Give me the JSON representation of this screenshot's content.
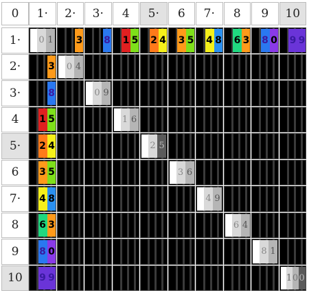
{
  "corner_label": "0",
  "col_headers": [
    "1·",
    "2·",
    "3·",
    "4",
    "5·",
    "6",
    "7·",
    "8",
    "9",
    "10"
  ],
  "row_headers": [
    "1·",
    "2·",
    "3·",
    "4",
    "5·",
    "6",
    "7·",
    "8",
    "9",
    "10"
  ],
  "shaded_col_headers": [
    "5·",
    "10"
  ],
  "shaded_row_headers": [
    "5·",
    "10"
  ],
  "colors": {
    "diag_white": "#ffffff",
    "diag_light": "#d9d9d9",
    "diag_mid": "#b5b5b5",
    "diag_dark": "#5a5a5a",
    "c0": "#ffffff",
    "c1": "#d9d9d9",
    "c2": "#ff4ad3",
    "c3": "#ff9a1a",
    "c4": "#f5f01a",
    "c5": "#7ee01a",
    "c6": "#20d870",
    "c7": "#20b0e8",
    "c8": "#2a78f0",
    "c9": "#7a34e8",
    "red": "#e02020",
    "purple": "#7030e0",
    "dark_purple": "#4a1ab8"
  },
  "cells": [
    {
      "r": 1,
      "c": 1,
      "text": "01",
      "kind": "diag",
      "digits": [
        "0",
        "1"
      ]
    },
    {
      "r": 1,
      "c": 2,
      "text": "3",
      "kind": "color",
      "digits": [
        "",
        "3"
      ],
      "bg": [
        "#000",
        "#ff9a1a"
      ]
    },
    {
      "r": 1,
      "c": 3,
      "text": "8",
      "kind": "color",
      "digits": [
        "",
        "8"
      ],
      "bg": [
        "#000",
        "#2a78f0"
      ]
    },
    {
      "r": 1,
      "c": 4,
      "text": "15",
      "kind": "color",
      "digits": [
        "1",
        "5"
      ],
      "bg": [
        "#e02020",
        "#7ee01a"
      ]
    },
    {
      "r": 1,
      "c": 5,
      "text": "24",
      "kind": "color",
      "digits": [
        "2",
        "4"
      ],
      "bg": [
        "#ff7a1a",
        "#f5f01a"
      ]
    },
    {
      "r": 1,
      "c": 6,
      "text": "35",
      "kind": "color",
      "digits": [
        "3",
        "5"
      ],
      "bg": [
        "#ff9a1a",
        "#7ee01a"
      ]
    },
    {
      "r": 1,
      "c": 7,
      "text": "48",
      "kind": "color",
      "digits": [
        "4",
        "8"
      ],
      "bg": [
        "#f5f01a",
        "#2a90f0"
      ]
    },
    {
      "r": 1,
      "c": 8,
      "text": "63",
      "kind": "color",
      "digits": [
        "6",
        "3"
      ],
      "bg": [
        "#20d880",
        "#ff9a1a"
      ]
    },
    {
      "r": 1,
      "c": 9,
      "text": "80",
      "kind": "color",
      "digits": [
        "8",
        "0"
      ],
      "bg": [
        "#2a78f0",
        "#8a3ae8"
      ]
    },
    {
      "r": 1,
      "c": 10,
      "text": "99",
      "kind": "color",
      "digits": [
        "9",
        "9"
      ],
      "bg": [
        "#6a34d8",
        "#6a34d8"
      ]
    },
    {
      "r": 2,
      "c": 1,
      "text": "3",
      "kind": "color",
      "digits": [
        "",
        "3"
      ],
      "bg": [
        "#000",
        "#ff9a1a"
      ]
    },
    {
      "r": 2,
      "c": 2,
      "text": "04",
      "kind": "diag",
      "digits": [
        "0",
        "4"
      ]
    },
    {
      "r": 3,
      "c": 1,
      "text": "8",
      "kind": "color",
      "digits": [
        "",
        "8"
      ],
      "bg": [
        "#000",
        "#2a78f0"
      ]
    },
    {
      "r": 3,
      "c": 3,
      "text": "09",
      "kind": "diag",
      "digits": [
        "0",
        "9"
      ]
    },
    {
      "r": 4,
      "c": 1,
      "text": "15",
      "kind": "color",
      "digits": [
        "1",
        "5"
      ],
      "bg": [
        "#e02020",
        "#7ee01a"
      ]
    },
    {
      "r": 4,
      "c": 4,
      "text": "16",
      "kind": "diag",
      "digits": [
        "1",
        "6"
      ]
    },
    {
      "r": 5,
      "c": 1,
      "text": "24",
      "kind": "color",
      "digits": [
        "2",
        "4"
      ],
      "bg": [
        "#ff7a1a",
        "#f5f01a"
      ]
    },
    {
      "r": 5,
      "c": 5,
      "text": "25",
      "kind": "diag",
      "digits": [
        "2",
        "5"
      ]
    },
    {
      "r": 6,
      "c": 1,
      "text": "35",
      "kind": "color",
      "digits": [
        "3",
        "5"
      ],
      "bg": [
        "#ff9a1a",
        "#7ee01a"
      ]
    },
    {
      "r": 6,
      "c": 6,
      "text": "36",
      "kind": "diag",
      "digits": [
        "3",
        "6"
      ]
    },
    {
      "r": 7,
      "c": 1,
      "text": "48",
      "kind": "color",
      "digits": [
        "4",
        "8"
      ],
      "bg": [
        "#f5f01a",
        "#2a90f0"
      ]
    },
    {
      "r": 7,
      "c": 7,
      "text": "49",
      "kind": "diag",
      "digits": [
        "4",
        "9"
      ]
    },
    {
      "r": 8,
      "c": 1,
      "text": "63",
      "kind": "color",
      "digits": [
        "6",
        "3"
      ],
      "bg": [
        "#20d880",
        "#ff9a1a"
      ]
    },
    {
      "r": 8,
      "c": 8,
      "text": "64",
      "kind": "diag",
      "digits": [
        "6",
        "4"
      ]
    },
    {
      "r": 9,
      "c": 1,
      "text": "80",
      "kind": "color",
      "digits": [
        "8",
        "0"
      ],
      "bg": [
        "#2a78f0",
        "#8a3ae8"
      ]
    },
    {
      "r": 9,
      "c": 9,
      "text": "81",
      "kind": "diag",
      "digits": [
        "8",
        "1"
      ]
    },
    {
      "r": 10,
      "c": 1,
      "text": "99",
      "kind": "color",
      "digits": [
        "9",
        "9"
      ],
      "bg": [
        "#6a34d8",
        "#6a34d8"
      ]
    },
    {
      "r": 10,
      "c": 10,
      "text": "100",
      "kind": "diag3",
      "digits": [
        "1",
        "0",
        "0"
      ]
    }
  ]
}
